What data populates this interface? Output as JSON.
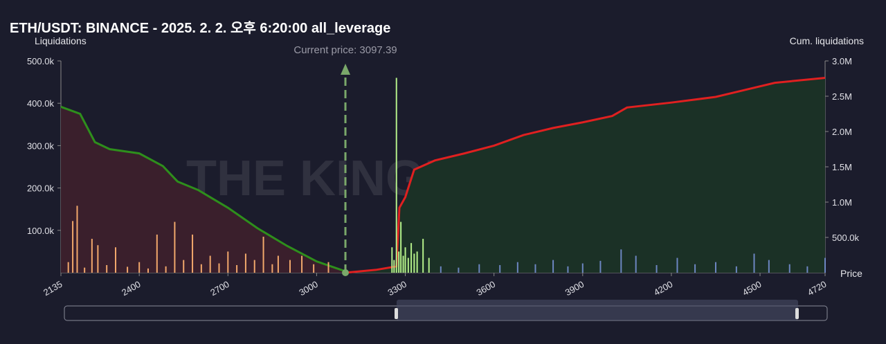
{
  "chart_data": {
    "type": "bar",
    "title": "ETH/USDT: BINANCE - 2025. 2. 2. 오후 6:20:00 all_leverage",
    "y_label": "Liquidations",
    "y2_label": "Cum. liquidations",
    "x_label": "Price",
    "annotation": "Current price: 3097.39",
    "current_price": 3097.39,
    "watermark": "THE KINGFISHER.io",
    "xlim": [
      2135,
      4720
    ],
    "xticks": [
      2135,
      2400,
      2700,
      3000,
      3300,
      3600,
      3900,
      4200,
      4500,
      4720
    ],
    "ylim": [
      0,
      500000
    ],
    "yticks": [
      {
        "value": 100000,
        "label": "100.0k"
      },
      {
        "value": 200000,
        "label": "200.0k"
      },
      {
        "value": 300000,
        "label": "300.0k"
      },
      {
        "value": 400000,
        "label": "400.0k"
      },
      {
        "value": 500000,
        "label": "500.0k"
      }
    ],
    "y2lim": [
      0,
      3000000
    ],
    "y2ticks": [
      {
        "value": 500000,
        "label": "500.0k"
      },
      {
        "value": 1000000,
        "label": "1.0M"
      },
      {
        "value": 1500000,
        "label": "1.5M"
      },
      {
        "value": 2000000,
        "label": "2.0M"
      },
      {
        "value": 2500000,
        "label": "2.5M"
      },
      {
        "value": 3000000,
        "label": "3.0M"
      }
    ],
    "series": [
      {
        "type": "area",
        "axis": "y2",
        "color": "#2e8f1c",
        "fill": "#3a1f2c",
        "x": [
          2135,
          2200,
          2250,
          2300,
          2400,
          2480,
          2530,
          2600,
          2700,
          2800,
          2900,
          3000,
          3097
        ],
        "values": [
          2350000,
          2250000,
          1850000,
          1750000,
          1690000,
          1510000,
          1290000,
          1170000,
          920000,
          630000,
          380000,
          160000,
          20000
        ]
      },
      {
        "type": "area",
        "axis": "y2",
        "color": "#e02020",
        "fill": "#1b3126",
        "x": [
          3097,
          3200,
          3270,
          3280,
          3300,
          3330,
          3400,
          3500,
          3600,
          3700,
          3800,
          3900,
          4000,
          4050,
          4200,
          4350,
          4450,
          4550,
          4720
        ],
        "values": [
          0,
          40000,
          90000,
          920000,
          1070000,
          1460000,
          1590000,
          1690000,
          1800000,
          1950000,
          2050000,
          2130000,
          2220000,
          2340000,
          2410000,
          2490000,
          2590000,
          2690000,
          2760000
        ]
      },
      {
        "type": "bar",
        "color": "#f2a86c",
        "x": [
          2160,
          2175,
          2190,
          2215,
          2240,
          2260,
          2290,
          2320,
          2360,
          2400,
          2430,
          2460,
          2490,
          2520,
          2550,
          2580,
          2610,
          2640,
          2670,
          2700,
          2730,
          2760,
          2790,
          2820,
          2850,
          2870,
          2910,
          2950,
          2990,
          3040
        ],
        "values": [
          25000,
          122000,
          158000,
          12000,
          80000,
          65000,
          18000,
          60000,
          14000,
          25000,
          10000,
          90000,
          15000,
          120000,
          30000,
          90000,
          20000,
          40000,
          22000,
          50000,
          18000,
          45000,
          30000,
          85000,
          20000,
          40000,
          30000,
          40000,
          20000,
          25000
        ]
      },
      {
        "type": "bar",
        "color": "#b5f08a",
        "x": [
          3255,
          3262,
          3270,
          3278,
          3285,
          3293,
          3300,
          3310,
          3320,
          3330,
          3340,
          3360,
          3380
        ],
        "values": [
          60000,
          30000,
          460000,
          50000,
          120000,
          40000,
          60000,
          35000,
          70000,
          45000,
          50000,
          80000,
          35000
        ]
      },
      {
        "type": "bar",
        "color": "#6d86c2",
        "x": [
          3420,
          3480,
          3550,
          3620,
          3680,
          3740,
          3800,
          3850,
          3900,
          3960,
          4030,
          4080,
          4150,
          4220,
          4280,
          4350,
          4420,
          4480,
          4530,
          4600,
          4660,
          4720
        ],
        "values": [
          15000,
          12000,
          20000,
          18000,
          25000,
          20000,
          30000,
          15000,
          22000,
          28000,
          55000,
          40000,
          18000,
          35000,
          20000,
          25000,
          15000,
          45000,
          30000,
          20000,
          15000,
          35000
        ]
      }
    ]
  }
}
